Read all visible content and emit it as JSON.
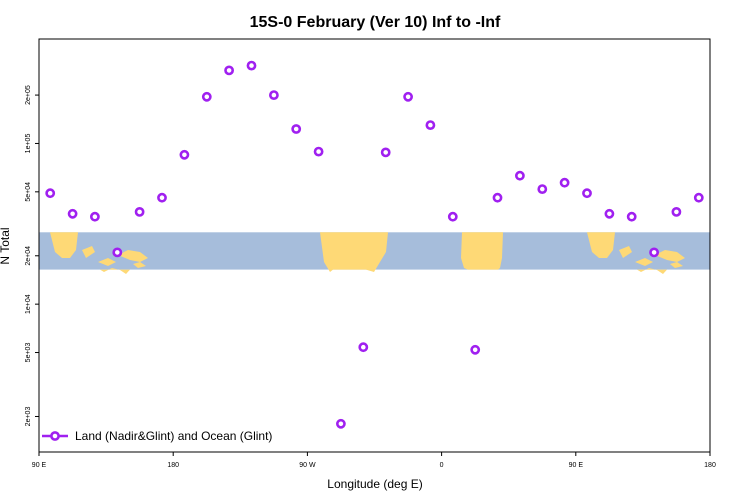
{
  "colors": {
    "marker": "#a020f0",
    "ocean": "#a6bddb",
    "land": "#fed976",
    "axis": "#000000",
    "background": "#ffffff"
  },
  "chart_data": {
    "type": "scatter",
    "title": "15S-0 February (Ver 10)   Inf to -Inf",
    "xlabel": "Longitude (deg E)",
    "ylabel": "N Total",
    "y_scale": "log",
    "xlim": [
      90,
      540
    ],
    "ylim_log10": [
      3.08,
      5.65
    ],
    "x_ticks": [
      {
        "value": 90,
        "label": "90 E"
      },
      {
        "value": 180,
        "label": "180"
      },
      {
        "value": 270,
        "label": "90 W"
      },
      {
        "value": 360,
        "label": "0"
      },
      {
        "value": 450,
        "label": "90 E"
      },
      {
        "value": 540,
        "label": "180"
      }
    ],
    "y_ticks": [
      {
        "value": 2000,
        "label": "2e+03"
      },
      {
        "value": 5000,
        "label": "5e+03"
      },
      {
        "value": 10000,
        "label": "1e+04"
      },
      {
        "value": 20000,
        "label": "2e+04"
      },
      {
        "value": 50000,
        "label": "5e+04"
      },
      {
        "value": 100000,
        "label": "1e+05"
      },
      {
        "value": 200000,
        "label": "2e+05"
      }
    ],
    "map_strip": {
      "lat_range": "15S-0",
      "y_low": 16400,
      "y_high": 28000
    },
    "series": [
      {
        "name": "Land (Nadir&Glint) and Ocean (Glint)",
        "marker": "circle-open",
        "x": [
          97.5,
          112.5,
          127.5,
          142.5,
          157.5,
          172.5,
          187.5,
          202.5,
          217.5,
          232.5,
          247.5,
          262.5,
          277.5,
          292.5,
          307.5,
          322.5,
          337.5,
          352.5,
          367.5,
          382.5,
          397.5,
          412.5,
          427.5,
          442.5,
          457.5,
          472.5,
          487.5,
          502.5,
          517.5,
          532.5
        ],
        "y": [
          49000,
          36500,
          35000,
          21000,
          37500,
          46000,
          85000,
          195000,
          285000,
          305000,
          200000,
          123000,
          89000,
          1800,
          5400,
          88000,
          195000,
          130000,
          35000,
          5200,
          46000,
          63000,
          52000,
          57000,
          49000,
          36500,
          35000,
          21000,
          37500,
          46000
        ]
      }
    ],
    "legend": {
      "position": "bottom-left",
      "label": "Land (Nadir&Glint) and Ocean (Glint)"
    }
  }
}
